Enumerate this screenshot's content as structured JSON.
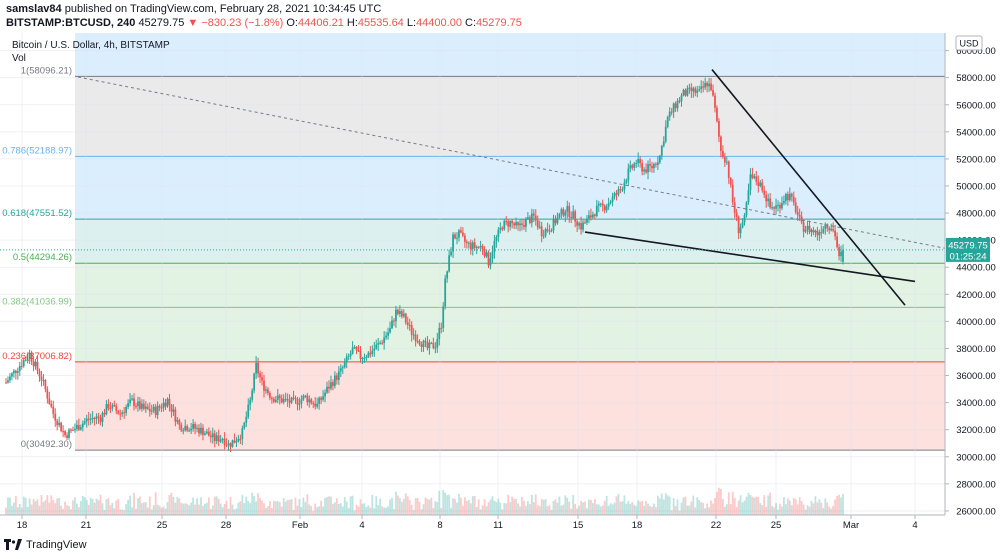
{
  "header": {
    "author": "samslav84",
    "published_text": "published on TradingView.com, February 28, 2021 10:34:45 UTC",
    "symbol": "BITSTAMP:BTCUSD, 240",
    "last": "45279.75",
    "change": "▼ −830.23 (−1.8%)",
    "o_label": "O:",
    "o": "44406.21",
    "h_label": "H:",
    "h": "45535.64",
    "l_label": "L:",
    "l": "44400.00",
    "c_label": "C:",
    "c": "45279.75"
  },
  "legend": {
    "title": "Bitcoin / U.S. Dollar, 4h, BITSTAMP",
    "vol": "Vol"
  },
  "currency_button": "USD",
  "price_tag": {
    "price": "45279.75",
    "countdown": "01:25:24"
  },
  "footer": {
    "brand": "TradingView"
  },
  "colors": {
    "up": "#26a69a",
    "down": "#ef5350",
    "fib_top": "#787b86",
    "fib_786": "#64b5f6",
    "fib_618": "#26a69a",
    "fib_5": "#4caf50",
    "fib_382": "#81c784",
    "fib_236": "#f44336"
  },
  "chart_data": {
    "type": "candlestick",
    "title": "Bitcoin / U.S. Dollar, 4h, BITSTAMP",
    "ylim": [
      25700,
      61300
    ],
    "y_ticks": [
      "26000.00",
      "28000.00",
      "30000.00",
      "32000.00",
      "34000.00",
      "36000.00",
      "38000.00",
      "40000.00",
      "42000.00",
      "44000.00",
      "46000.00",
      "48000.00",
      "50000.00",
      "52000.00",
      "54000.00",
      "56000.00",
      "58000.00",
      "60000.00"
    ],
    "x_ticks": [
      "18",
      "21",
      "25",
      "28",
      "Feb",
      "4",
      "8",
      "11",
      "15",
      "18",
      "22",
      "25",
      "Mar",
      "4"
    ],
    "fib_levels": [
      {
        "label": "1(58096.21)",
        "price": 58096.21
      },
      {
        "label": "0.786(52188.97)",
        "price": 52188.97
      },
      {
        "label": "0.618(47551.52)",
        "price": 47551.52
      },
      {
        "label": "0.5(44294.26)",
        "price": 44294.26
      },
      {
        "label": "0.382(41036.99)",
        "price": 41036.99
      },
      {
        "label": "0.236(37006.82)",
        "price": 37006.82
      },
      {
        "label": "0(30492.30)",
        "price": 30492.3
      }
    ],
    "price_keypoints": [
      [
        0,
        35500
      ],
      [
        6,
        36600
      ],
      [
        12,
        37600
      ],
      [
        18,
        35800
      ],
      [
        24,
        33200
      ],
      [
        30,
        31600
      ],
      [
        36,
        32200
      ],
      [
        42,
        32800
      ],
      [
        48,
        32900
      ],
      [
        52,
        33800
      ],
      [
        58,
        33200
      ],
      [
        64,
        34100
      ],
      [
        70,
        33500
      ],
      [
        76,
        33400
      ],
      [
        82,
        34200
      ],
      [
        88,
        32300
      ],
      [
        94,
        32200
      ],
      [
        100,
        31900
      ],
      [
        106,
        31300
      ],
      [
        110,
        31400
      ],
      [
        113,
        30900
      ],
      [
        116,
        31200
      ],
      [
        120,
        31800
      ],
      [
        124,
        34100
      ],
      [
        127,
        36700
      ],
      [
        130,
        35400
      ],
      [
        135,
        34400
      ],
      [
        140,
        34200
      ],
      [
        146,
        34000
      ],
      [
        152,
        34400
      ],
      [
        158,
        33800
      ],
      [
        164,
        35200
      ],
      [
        170,
        36300
      ],
      [
        176,
        37900
      ],
      [
        180,
        37400
      ],
      [
        184,
        37600
      ],
      [
        190,
        38400
      ],
      [
        195,
        39400
      ],
      [
        198,
        40700
      ],
      [
        202,
        40300
      ],
      [
        206,
        39200
      ],
      [
        210,
        38600
      ],
      [
        214,
        38000
      ],
      [
        218,
        38300
      ],
      [
        221,
        39800
      ],
      [
        223,
        42900
      ],
      [
        225,
        44600
      ],
      [
        227,
        46200
      ],
      [
        230,
        46400
      ],
      [
        234,
        45700
      ],
      [
        238,
        45500
      ],
      [
        242,
        45500
      ],
      [
        245,
        44400
      ],
      [
        248,
        45800
      ],
      [
        252,
        47100
      ],
      [
        256,
        47300
      ],
      [
        260,
        46900
      ],
      [
        264,
        47400
      ],
      [
        268,
        47700
      ],
      [
        272,
        46600
      ],
      [
        276,
        46900
      ],
      [
        280,
        47600
      ],
      [
        284,
        48300
      ],
      [
        288,
        47800
      ],
      [
        292,
        47000
      ],
      [
        296,
        47600
      ],
      [
        300,
        48300
      ],
      [
        304,
        48500
      ],
      [
        308,
        49100
      ],
      [
        312,
        49700
      ],
      [
        316,
        51000
      ],
      [
        320,
        51800
      ],
      [
        324,
        51200
      ],
      [
        328,
        51400
      ],
      [
        332,
        52200
      ],
      [
        336,
        55000
      ],
      [
        340,
        56000
      ],
      [
        344,
        56800
      ],
      [
        348,
        57000
      ],
      [
        352,
        56900
      ],
      [
        356,
        57600
      ],
      [
        358,
        57300
      ],
      [
        360,
        55600
      ],
      [
        363,
        52600
      ],
      [
        366,
        51800
      ],
      [
        369,
        48800
      ],
      [
        372,
        46800
      ],
      [
        375,
        47500
      ],
      [
        378,
        50600
      ],
      [
        381,
        50400
      ],
      [
        384,
        49900
      ],
      [
        388,
        48400
      ],
      [
        392,
        48500
      ],
      [
        396,
        49300
      ],
      [
        398,
        49200
      ],
      [
        401,
        48300
      ],
      [
        404,
        47000
      ],
      [
        408,
        46800
      ],
      [
        412,
        46500
      ],
      [
        416,
        47200
      ],
      [
        419,
        47000
      ],
      [
        421,
        46400
      ],
      [
        423,
        44600
      ],
      [
        425,
        45279.75
      ]
    ],
    "volume_note": "volume bars along bottom",
    "drawings": [
      {
        "type": "trendline",
        "label": "resistance"
      },
      {
        "type": "trendline",
        "label": "support"
      },
      {
        "type": "trendline",
        "label": "dashed"
      }
    ]
  }
}
